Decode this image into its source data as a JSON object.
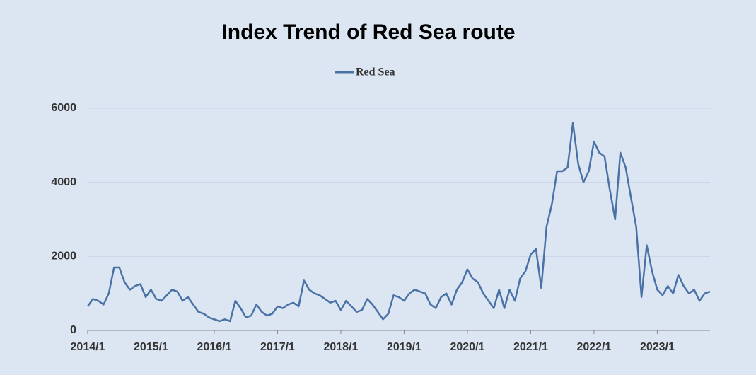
{
  "chart_data": {
    "type": "line",
    "title": "Index Trend of Red Sea route",
    "categories": [
      "2014/1",
      null,
      null,
      null,
      null,
      null,
      null,
      null,
      null,
      null,
      null,
      null,
      "2015/1",
      null,
      null,
      null,
      null,
      null,
      null,
      null,
      null,
      null,
      null,
      null,
      "2016/1",
      null,
      null,
      null,
      null,
      null,
      null,
      null,
      null,
      null,
      null,
      null,
      "2017/1",
      null,
      null,
      null,
      null,
      null,
      null,
      null,
      null,
      null,
      null,
      null,
      "2018/1",
      null,
      null,
      null,
      null,
      null,
      null,
      null,
      null,
      null,
      null,
      null,
      "2019/1",
      null,
      null,
      null,
      null,
      null,
      null,
      null,
      null,
      null,
      null,
      null,
      "2020/1",
      null,
      null,
      null,
      null,
      null,
      null,
      null,
      null,
      null,
      null,
      null,
      "2021/1",
      null,
      null,
      null,
      null,
      null,
      null,
      null,
      null,
      null,
      null,
      null,
      "2022/1",
      null,
      null,
      null,
      null,
      null,
      null,
      null,
      null,
      null,
      null,
      null,
      "2023/1",
      null,
      null,
      null,
      null,
      null,
      null,
      null,
      null,
      null,
      null
    ],
    "series": [
      {
        "name": "Red Sea",
        "color": "#4a72a6",
        "values": [
          650,
          850,
          800,
          700,
          1000,
          1700,
          1700,
          1300,
          1100,
          1200,
          1250,
          900,
          1100,
          850,
          800,
          950,
          1100,
          1050,
          800,
          900,
          700,
          500,
          450,
          350,
          300,
          250,
          300,
          250,
          800,
          600,
          350,
          400,
          700,
          500,
          400,
          450,
          650,
          600,
          700,
          750,
          650,
          1350,
          1100,
          1000,
          950,
          850,
          750,
          800,
          550,
          800,
          650,
          500,
          550,
          850,
          700,
          500,
          300,
          450,
          950,
          900,
          800,
          1000,
          1100,
          1050,
          1000,
          700,
          600,
          900,
          1000,
          700,
          1100,
          1300,
          1650,
          1400,
          1300,
          1000,
          800,
          600,
          1100,
          600,
          1100,
          800,
          1400,
          1600,
          2050,
          2200,
          1150,
          2800,
          3400,
          4300,
          4300,
          4400,
          5600,
          4500,
          4000,
          4300,
          5100,
          4800,
          4700,
          3800,
          3000,
          4800,
          4400,
          3600,
          2800,
          900,
          2300,
          1600,
          1100,
          950,
          1200,
          1000,
          1500,
          1200,
          1000,
          1100,
          800,
          1000,
          1050
        ]
      }
    ],
    "ylim": [
      0,
      6000
    ],
    "yticks": [
      0,
      2000,
      4000,
      6000
    ],
    "grid": true,
    "legend": "top"
  }
}
